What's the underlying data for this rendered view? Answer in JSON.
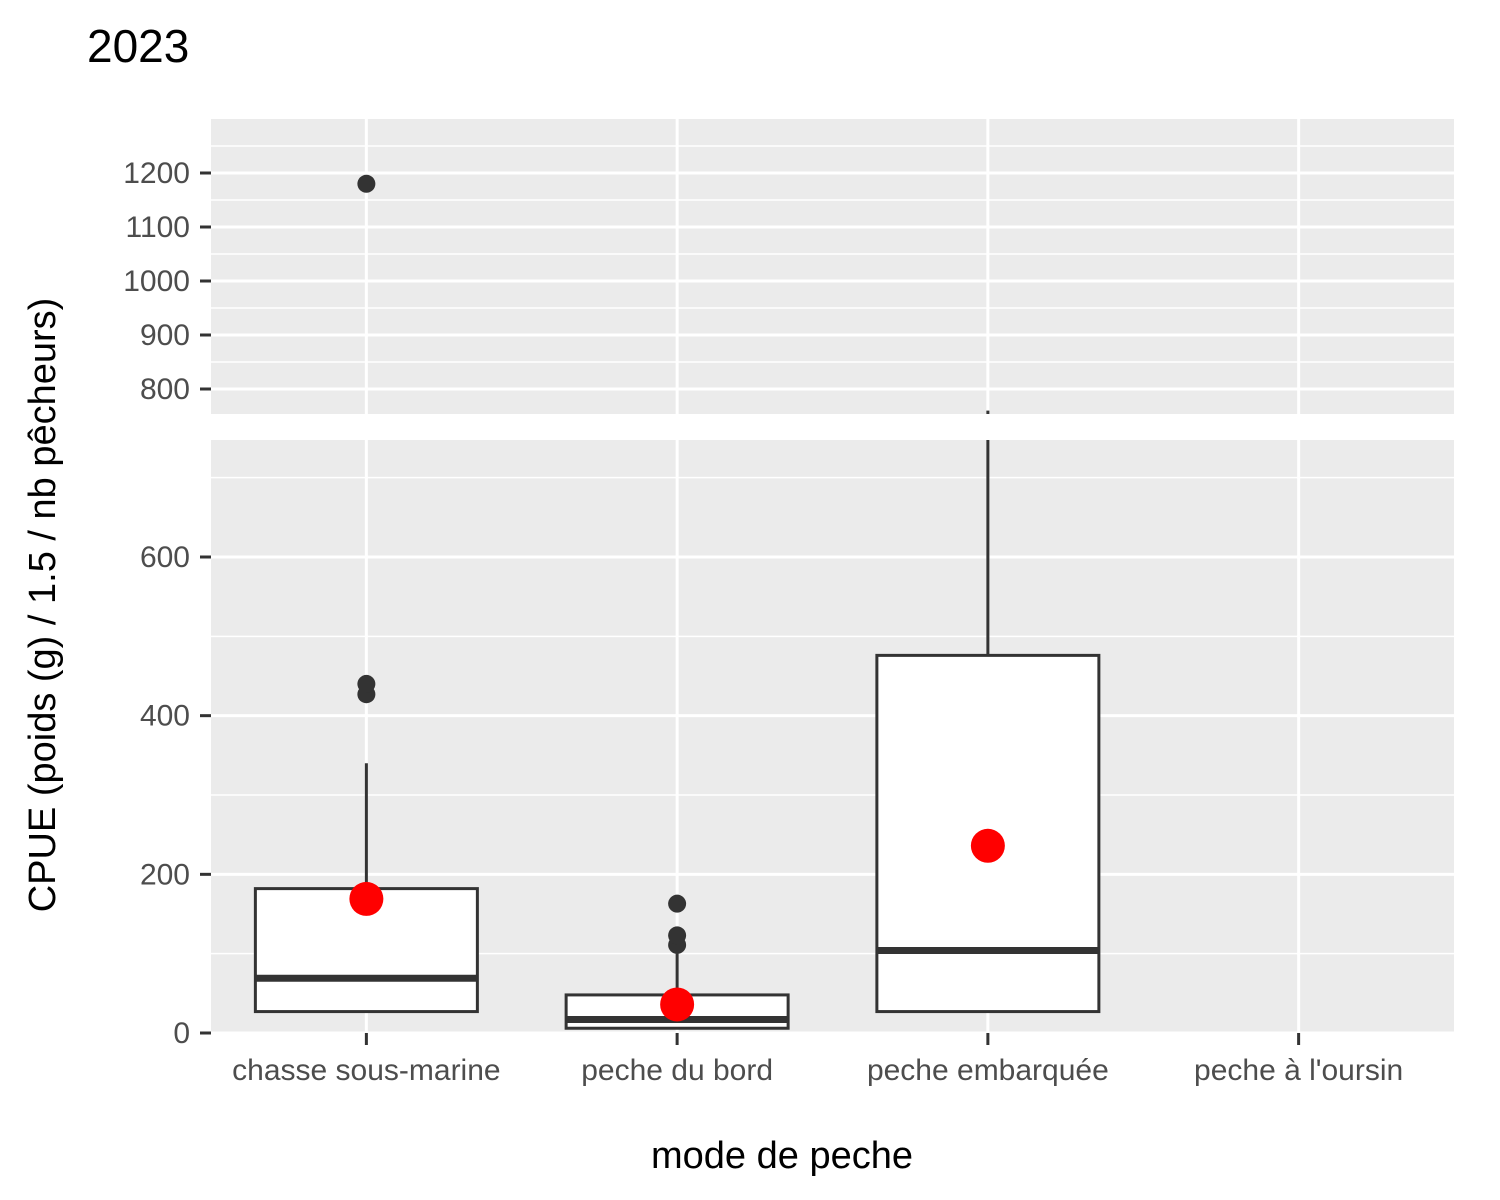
{
  "chart_data": {
    "type": "boxplot",
    "title": "2023",
    "xlabel": "mode de peche",
    "ylabel": "CPUE (poids (g) / 1.5 / nb pêcheurs)",
    "categories": [
      "chasse sous-marine",
      "peche du bord",
      "peche embarquée",
      "peche à l'oursin"
    ],
    "axis_break": true,
    "upper_panel": {
      "ylim": [
        750,
        1300
      ],
      "ticks": [
        800,
        900,
        1000,
        1100,
        1200
      ]
    },
    "lower_panel": {
      "ylim": [
        0,
        750
      ],
      "ticks": [
        0,
        200,
        400,
        600
      ]
    },
    "boxes": [
      {
        "category": "chasse sous-marine",
        "q1": 27,
        "median": 69,
        "q3": 182,
        "whisker_low": 27,
        "whisker_high": 340,
        "outliers": [
          427,
          440,
          1180
        ],
        "mean": 169
      },
      {
        "category": "peche du bord",
        "q1": 6,
        "median": 17,
        "q3": 48,
        "whisker_low": 6,
        "whisker_high": 100,
        "outliers": [
          111,
          123,
          163
        ],
        "mean": 36
      },
      {
        "category": "peche embarquée",
        "q1": 27,
        "median": 104,
        "q3": 476,
        "whisker_low": 27,
        "whisker_high": 760,
        "outliers": [],
        "mean": 236
      },
      {
        "category": "peche à l'oursin",
        "q1": null,
        "median": null,
        "q3": null,
        "whisker_low": null,
        "whisker_high": null,
        "outliers": [],
        "mean": null
      }
    ],
    "colors": {
      "panel_background": "#ebebeb",
      "grid": "#ffffff",
      "box_fill": "#ffffff",
      "box_line": "#333333",
      "outlier": "#333333",
      "mean_point": "#ff0000"
    },
    "grid": true,
    "legend": "none"
  }
}
